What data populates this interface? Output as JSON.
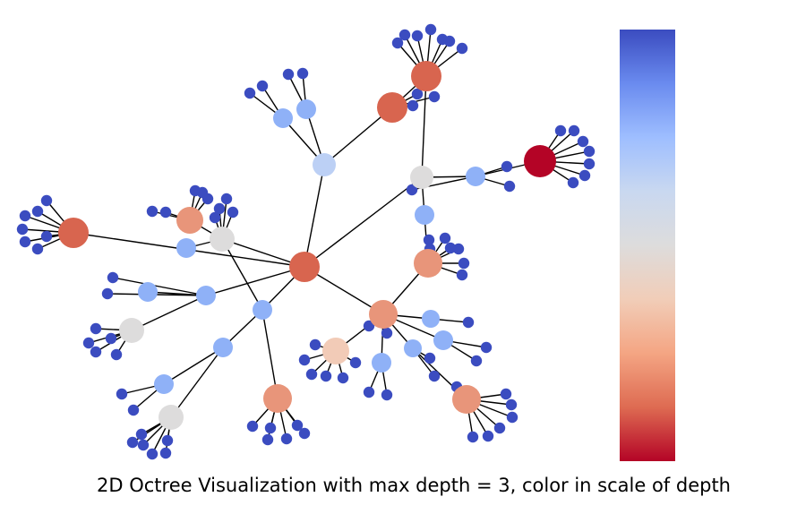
{
  "caption": "2D Octree Visualization with max depth = 3, color in scale of depth",
  "colors": {
    "leaf": "#3b4cc0",
    "light_blue": "#8fb1f7",
    "pale_blue": "#bcd0f5",
    "gray": "#dddcdc",
    "peach": "#f2cbb7",
    "salmon": "#e8957a",
    "orange_red": "#d8654f",
    "dark_red": "#b40426",
    "edge": "#000000"
  },
  "colorbar": {
    "stops": [
      "#3b4cc0",
      "#6a8bef",
      "#9ebeff",
      "#c9d8f0",
      "#dddcdc",
      "#f1cdb8",
      "#f4a583",
      "#de6b52",
      "#b40426"
    ]
  }
}
